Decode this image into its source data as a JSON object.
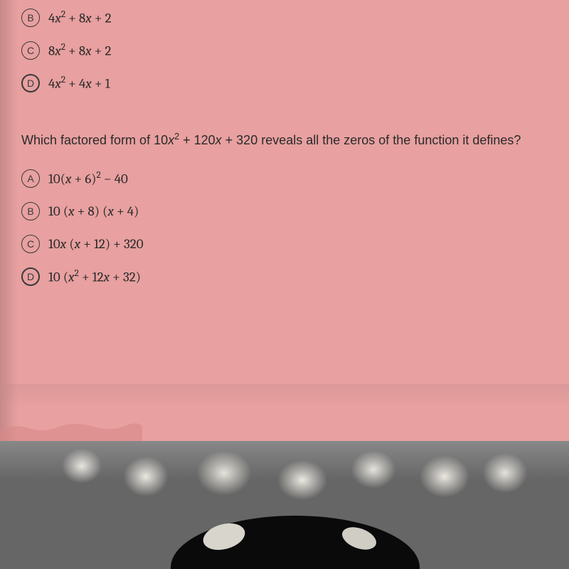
{
  "topOptions": [
    {
      "letter": "B",
      "expr": "4<i>x</i><sup>2</sup> + 8<i>x</i> + 2",
      "bold": false
    },
    {
      "letter": "C",
      "expr": "8<i>x</i><sup>2</sup> + 8<i>x</i> + 2",
      "bold": false
    },
    {
      "letter": "D",
      "expr": "4<i>x</i><sup>2</sup> + 4<i>x</i> + 1",
      "bold": true
    }
  ],
  "question": "Which factored form of 10<i>x</i><sup>2</sup> + 120<i>x</i> + 320 reveals all the zeros of the function it defines?",
  "bottomOptions": [
    {
      "letter": "A",
      "expr": "10(<i>x</i> + 6)<sup>2</sup> − 40",
      "bold": false
    },
    {
      "letter": "B",
      "expr": "10 (<i>x</i> + 8) (<i>x</i> + 4)",
      "bold": false
    },
    {
      "letter": "C",
      "expr": "10<i>x</i> (<i>x</i> + 12) + 320",
      "bold": false
    },
    {
      "letter": "D",
      "expr": "10 (<i>x</i><sup>2</sup> + 12<i>x</i> + 32)",
      "bold": true
    }
  ],
  "colors": {
    "paper": "#e8a0a0",
    "text": "#2a2a2a",
    "circle": "#3a3a3a"
  }
}
